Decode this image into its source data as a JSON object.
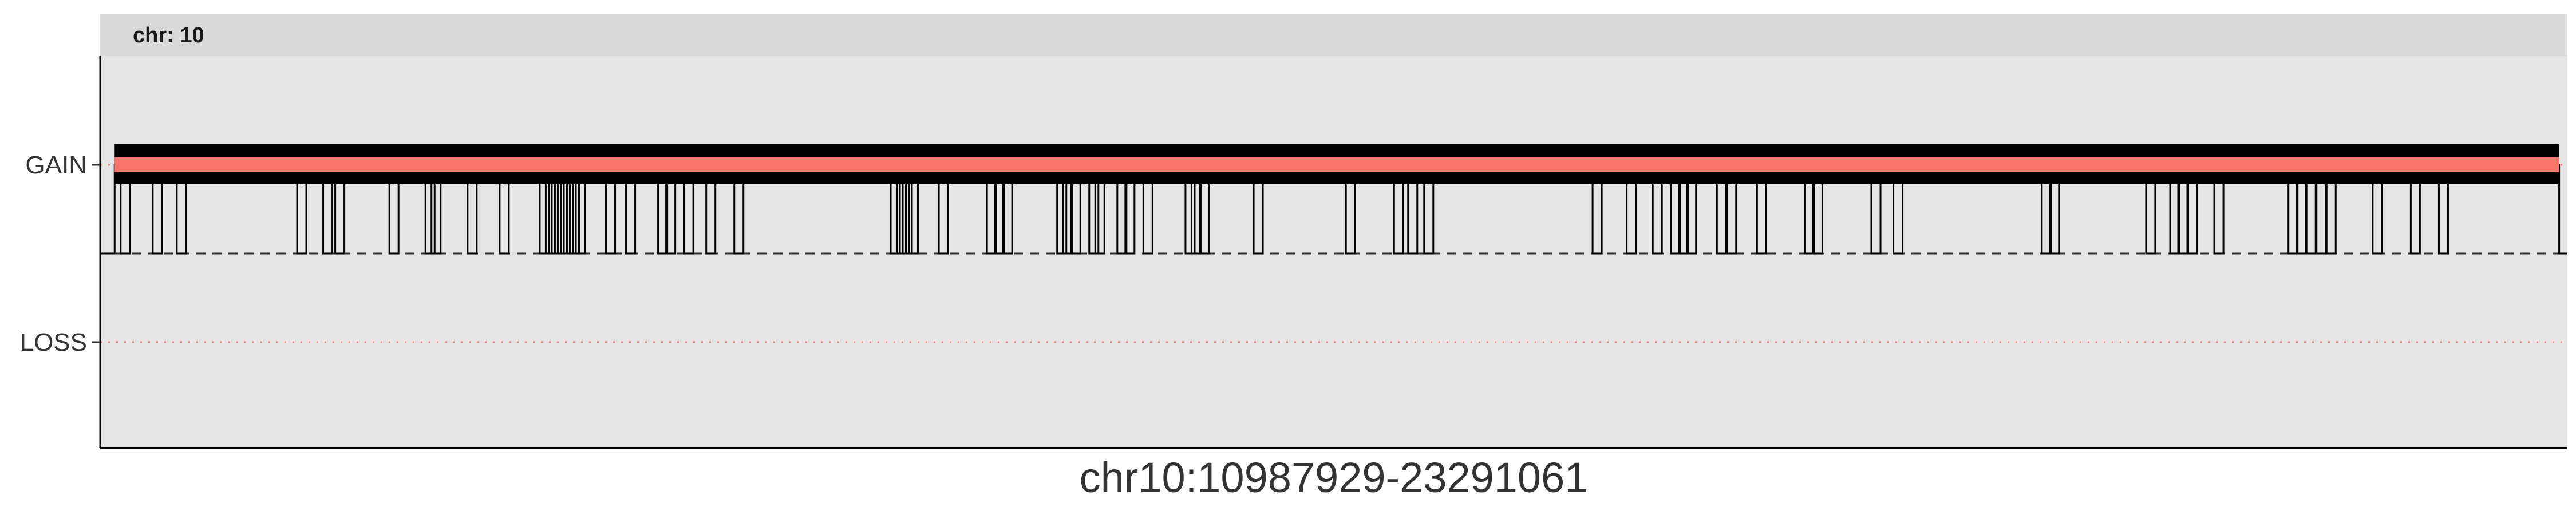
{
  "chart_data": {
    "type": "line",
    "facet_label": "chr: 10",
    "xlabel": "chr10:10987929-23291061",
    "ylabel": "",
    "y_categories": [
      "LOSS",
      "GAIN"
    ],
    "grid": false,
    "legend": "none",
    "x_domain": [
      10987929,
      23291061
    ],
    "neutral_level": 0,
    "gain_level": 1,
    "loss_level": -1,
    "series": [
      {
        "style": "black step line",
        "description_levels": "mostly GAIN with brief drops to neutral",
        "gain_span": [
          11060000,
          23250000
        ],
        "drops_to_neutral": [
          11090000,
          11250000,
          11370000,
          11970000,
          12100000,
          12160000,
          12430000,
          12610000,
          12640000,
          12820000,
          12980000,
          13180000,
          13210000,
          13240000,
          13270000,
          13300000,
          13330000,
          13360000,
          13510000,
          13610000,
          13770000,
          13810000,
          13900000,
          14010000,
          14150000,
          14930000,
          14960000,
          14990000,
          15020000,
          15170000,
          15410000,
          15450000,
          15490000,
          15760000,
          15790000,
          15830000,
          15920000,
          15950000,
          16060000,
          16100000,
          16190000,
          16400000,
          16430000,
          16470000,
          16740000,
          17200000,
          17440000,
          17510000,
          17590000,
          18430000,
          18600000,
          18730000,
          18820000,
          18860000,
          18900000,
          19050000,
          19100000,
          19250000,
          19490000,
          19530000,
          19820000,
          19930000,
          20670000,
          20710000,
          21190000,
          21310000,
          21350000,
          21400000,
          21530000,
          21900000,
          21940000,
          21990000,
          22040000,
          22090000,
          22320000,
          22510000,
          22650000
        ]
      },
      {
        "style": "salmon thick line",
        "color": "#F8766D",
        "level": "GAIN",
        "x_span": [
          11060000,
          23250000
        ]
      }
    ],
    "reference_lines": [
      {
        "level": "GAIN",
        "style": "dotted",
        "color": "#F8766D"
      },
      {
        "level": "LOSS",
        "style": "dotted",
        "color": "#F8766D"
      },
      {
        "level": "neutral",
        "style": "dashed",
        "color": "#333333"
      }
    ],
    "colors": {
      "panel_bg": "#E5E5E5",
      "strip_bg": "#D9D9D9",
      "step_line": "#000000",
      "segment": "#F8766D",
      "axis": "#000000"
    }
  }
}
